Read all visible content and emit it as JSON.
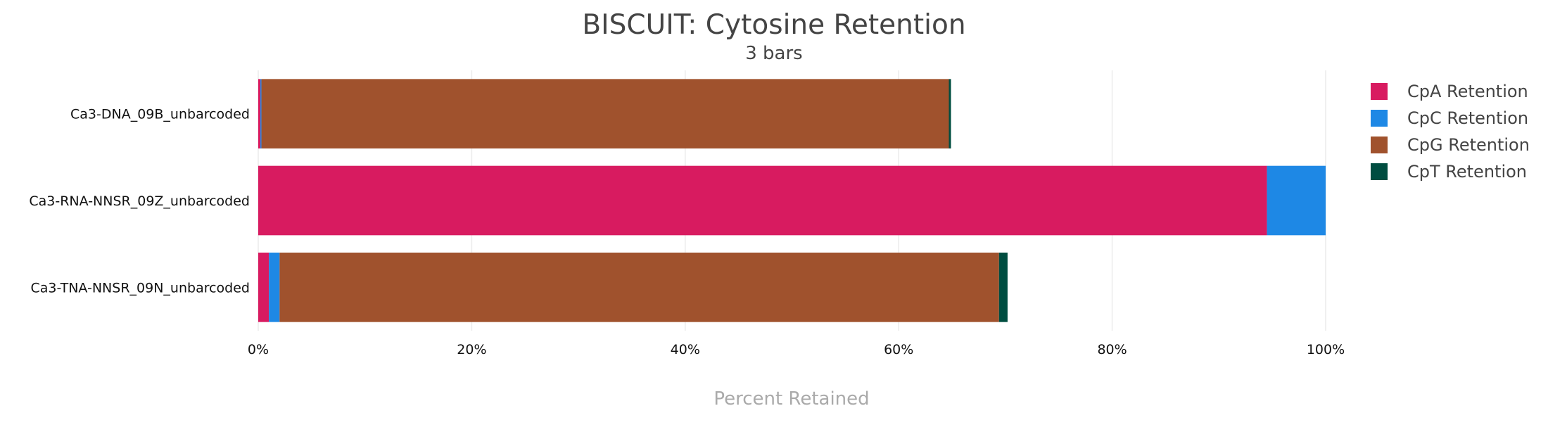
{
  "chart_data": {
    "type": "bar",
    "orientation": "horizontal",
    "stacked": true,
    "title": "BISCUIT: Cytosine Retention",
    "subtitle": "3 bars",
    "xlabel": "Percent Retained",
    "ylabel": "",
    "xlim": [
      0,
      100
    ],
    "x_ticks": [
      "0%",
      "20%",
      "40%",
      "60%",
      "80%",
      "100%"
    ],
    "x_tick_values": [
      0,
      20,
      40,
      60,
      80,
      100
    ],
    "grid": "vertical",
    "legend_position": "top-right",
    "categories": [
      "Ca3-DNA_09B_unbarcoded",
      "Ca3-RNA-NNSR_09Z_unbarcoded",
      "Ca3-TNA-NNSR_09N_unbarcoded"
    ],
    "series": [
      {
        "name": "CpA Retention",
        "color": "#d81b60",
        "values": [
          0.2,
          94.5,
          1.0
        ]
      },
      {
        "name": "CpC Retention",
        "color": "#1e88e5",
        "values": [
          0.1,
          5.5,
          1.0
        ]
      },
      {
        "name": "CpG Retention",
        "color": "#a0522d",
        "values": [
          64.4,
          0,
          67.4
        ]
      },
      {
        "name": "CpT Retention",
        "color": "#004d40",
        "values": [
          0.2,
          0,
          0.8
        ]
      }
    ]
  }
}
